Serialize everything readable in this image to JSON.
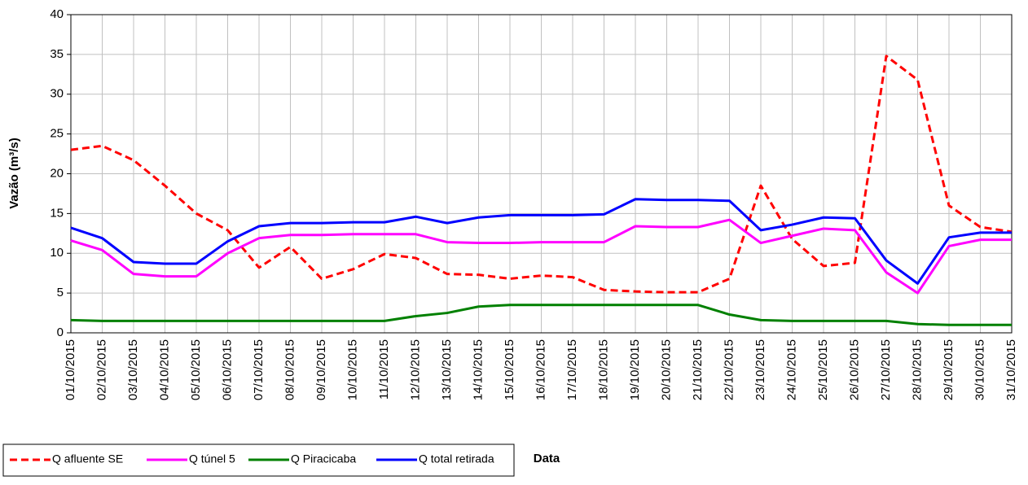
{
  "chart_data": {
    "type": "line",
    "y_label": "Vazão (m³/s)",
    "x_label": "Data",
    "x": [
      "01/10/2015",
      "02/10/2015",
      "03/10/2015",
      "04/10/2015",
      "05/10/2015",
      "06/10/2015",
      "07/10/2015",
      "08/10/2015",
      "09/10/2015",
      "10/10/2015",
      "11/10/2015",
      "12/10/2015",
      "13/10/2015",
      "14/10/2015",
      "15/10/2015",
      "16/10/2015",
      "17/10/2015",
      "18/10/2015",
      "19/10/2015",
      "20/10/2015",
      "21/10/2015",
      "22/10/2015",
      "23/10/2015",
      "24/10/2015",
      "25/10/2015",
      "26/10/2015",
      "27/10/2015",
      "28/10/2015",
      "29/10/2015",
      "30/10/2015",
      "31/10/2015"
    ],
    "ylim": [
      0,
      40
    ],
    "yticks": [
      0,
      5,
      10,
      15,
      20,
      25,
      30,
      35,
      40
    ],
    "grid": true,
    "legend": "bottom-left",
    "series": [
      {
        "name": "Q afluente SE",
        "color": "#ff0000",
        "dashed": true,
        "values": [
          23.0,
          23.5,
          21.7,
          18.5,
          15.0,
          12.9,
          8.2,
          10.8,
          6.8,
          8.0,
          9.9,
          9.4,
          7.4,
          7.3,
          6.8,
          7.2,
          7.0,
          5.4,
          5.2,
          5.1,
          5.1,
          6.8,
          18.5,
          11.8,
          8.4,
          8.8,
          34.8,
          31.8,
          16.0,
          13.3,
          12.7
        ]
      },
      {
        "name": "Q túnel 5",
        "color": "#ff00ff",
        "dashed": false,
        "values": [
          11.6,
          10.4,
          7.4,
          7.1,
          7.1,
          10.0,
          11.9,
          12.3,
          12.3,
          12.4,
          12.4,
          12.4,
          11.4,
          11.3,
          11.3,
          11.4,
          11.4,
          11.4,
          13.4,
          13.3,
          13.3,
          14.2,
          11.3,
          12.2,
          13.1,
          12.9,
          7.6,
          5.0,
          10.9,
          11.7,
          11.7
        ]
      },
      {
        "name": "Q Piracicaba",
        "color": "#008000",
        "dashed": false,
        "values": [
          1.6,
          1.5,
          1.5,
          1.5,
          1.5,
          1.5,
          1.5,
          1.5,
          1.5,
          1.5,
          1.5,
          2.1,
          2.5,
          3.3,
          3.5,
          3.5,
          3.5,
          3.5,
          3.5,
          3.5,
          3.5,
          2.3,
          1.6,
          1.5,
          1.5,
          1.5,
          1.5,
          1.1,
          1.0,
          1.0,
          1.0
        ]
      },
      {
        "name": "Q total retirada",
        "color": "#0000ff",
        "dashed": false,
        "values": [
          13.2,
          11.9,
          8.9,
          8.7,
          8.7,
          11.5,
          13.4,
          13.8,
          13.8,
          13.9,
          13.9,
          14.6,
          13.8,
          14.5,
          14.8,
          14.8,
          14.8,
          14.9,
          16.8,
          16.7,
          16.7,
          16.6,
          12.9,
          13.6,
          14.5,
          14.4,
          9.1,
          6.2,
          12.0,
          12.6,
          12.6
        ]
      }
    ]
  }
}
